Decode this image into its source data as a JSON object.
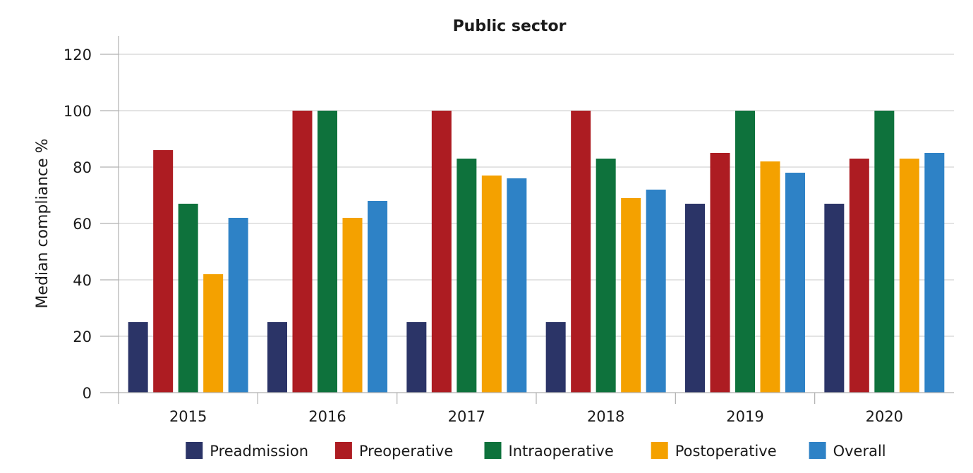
{
  "chart_data": {
    "type": "bar",
    "title": "Public sector",
    "xlabel": "",
    "ylabel": "Median compliance %",
    "ylim": [
      0,
      120
    ],
    "yticks": [
      0,
      20,
      40,
      60,
      80,
      100,
      120
    ],
    "grid": true,
    "legend_position": "bottom",
    "categories": [
      "2015",
      "2016",
      "2017",
      "2018",
      "2019",
      "2020"
    ],
    "series": [
      {
        "name": "Preadmission",
        "color": "#2b3467",
        "values": [
          25,
          25,
          25,
          25,
          67,
          67
        ]
      },
      {
        "name": "Preoperative",
        "color": "#ad1c22",
        "values": [
          86,
          100,
          100,
          100,
          85,
          83
        ]
      },
      {
        "name": "Intraoperative",
        "color": "#0e723c",
        "values": [
          67,
          100,
          83,
          83,
          100,
          100
        ]
      },
      {
        "name": "Postoperative",
        "color": "#f4a100",
        "values": [
          42,
          62,
          77,
          69,
          82,
          83
        ]
      },
      {
        "name": "Overall",
        "color": "#2e82c6",
        "values": [
          62,
          68,
          76,
          72,
          78,
          85
        ]
      }
    ]
  }
}
